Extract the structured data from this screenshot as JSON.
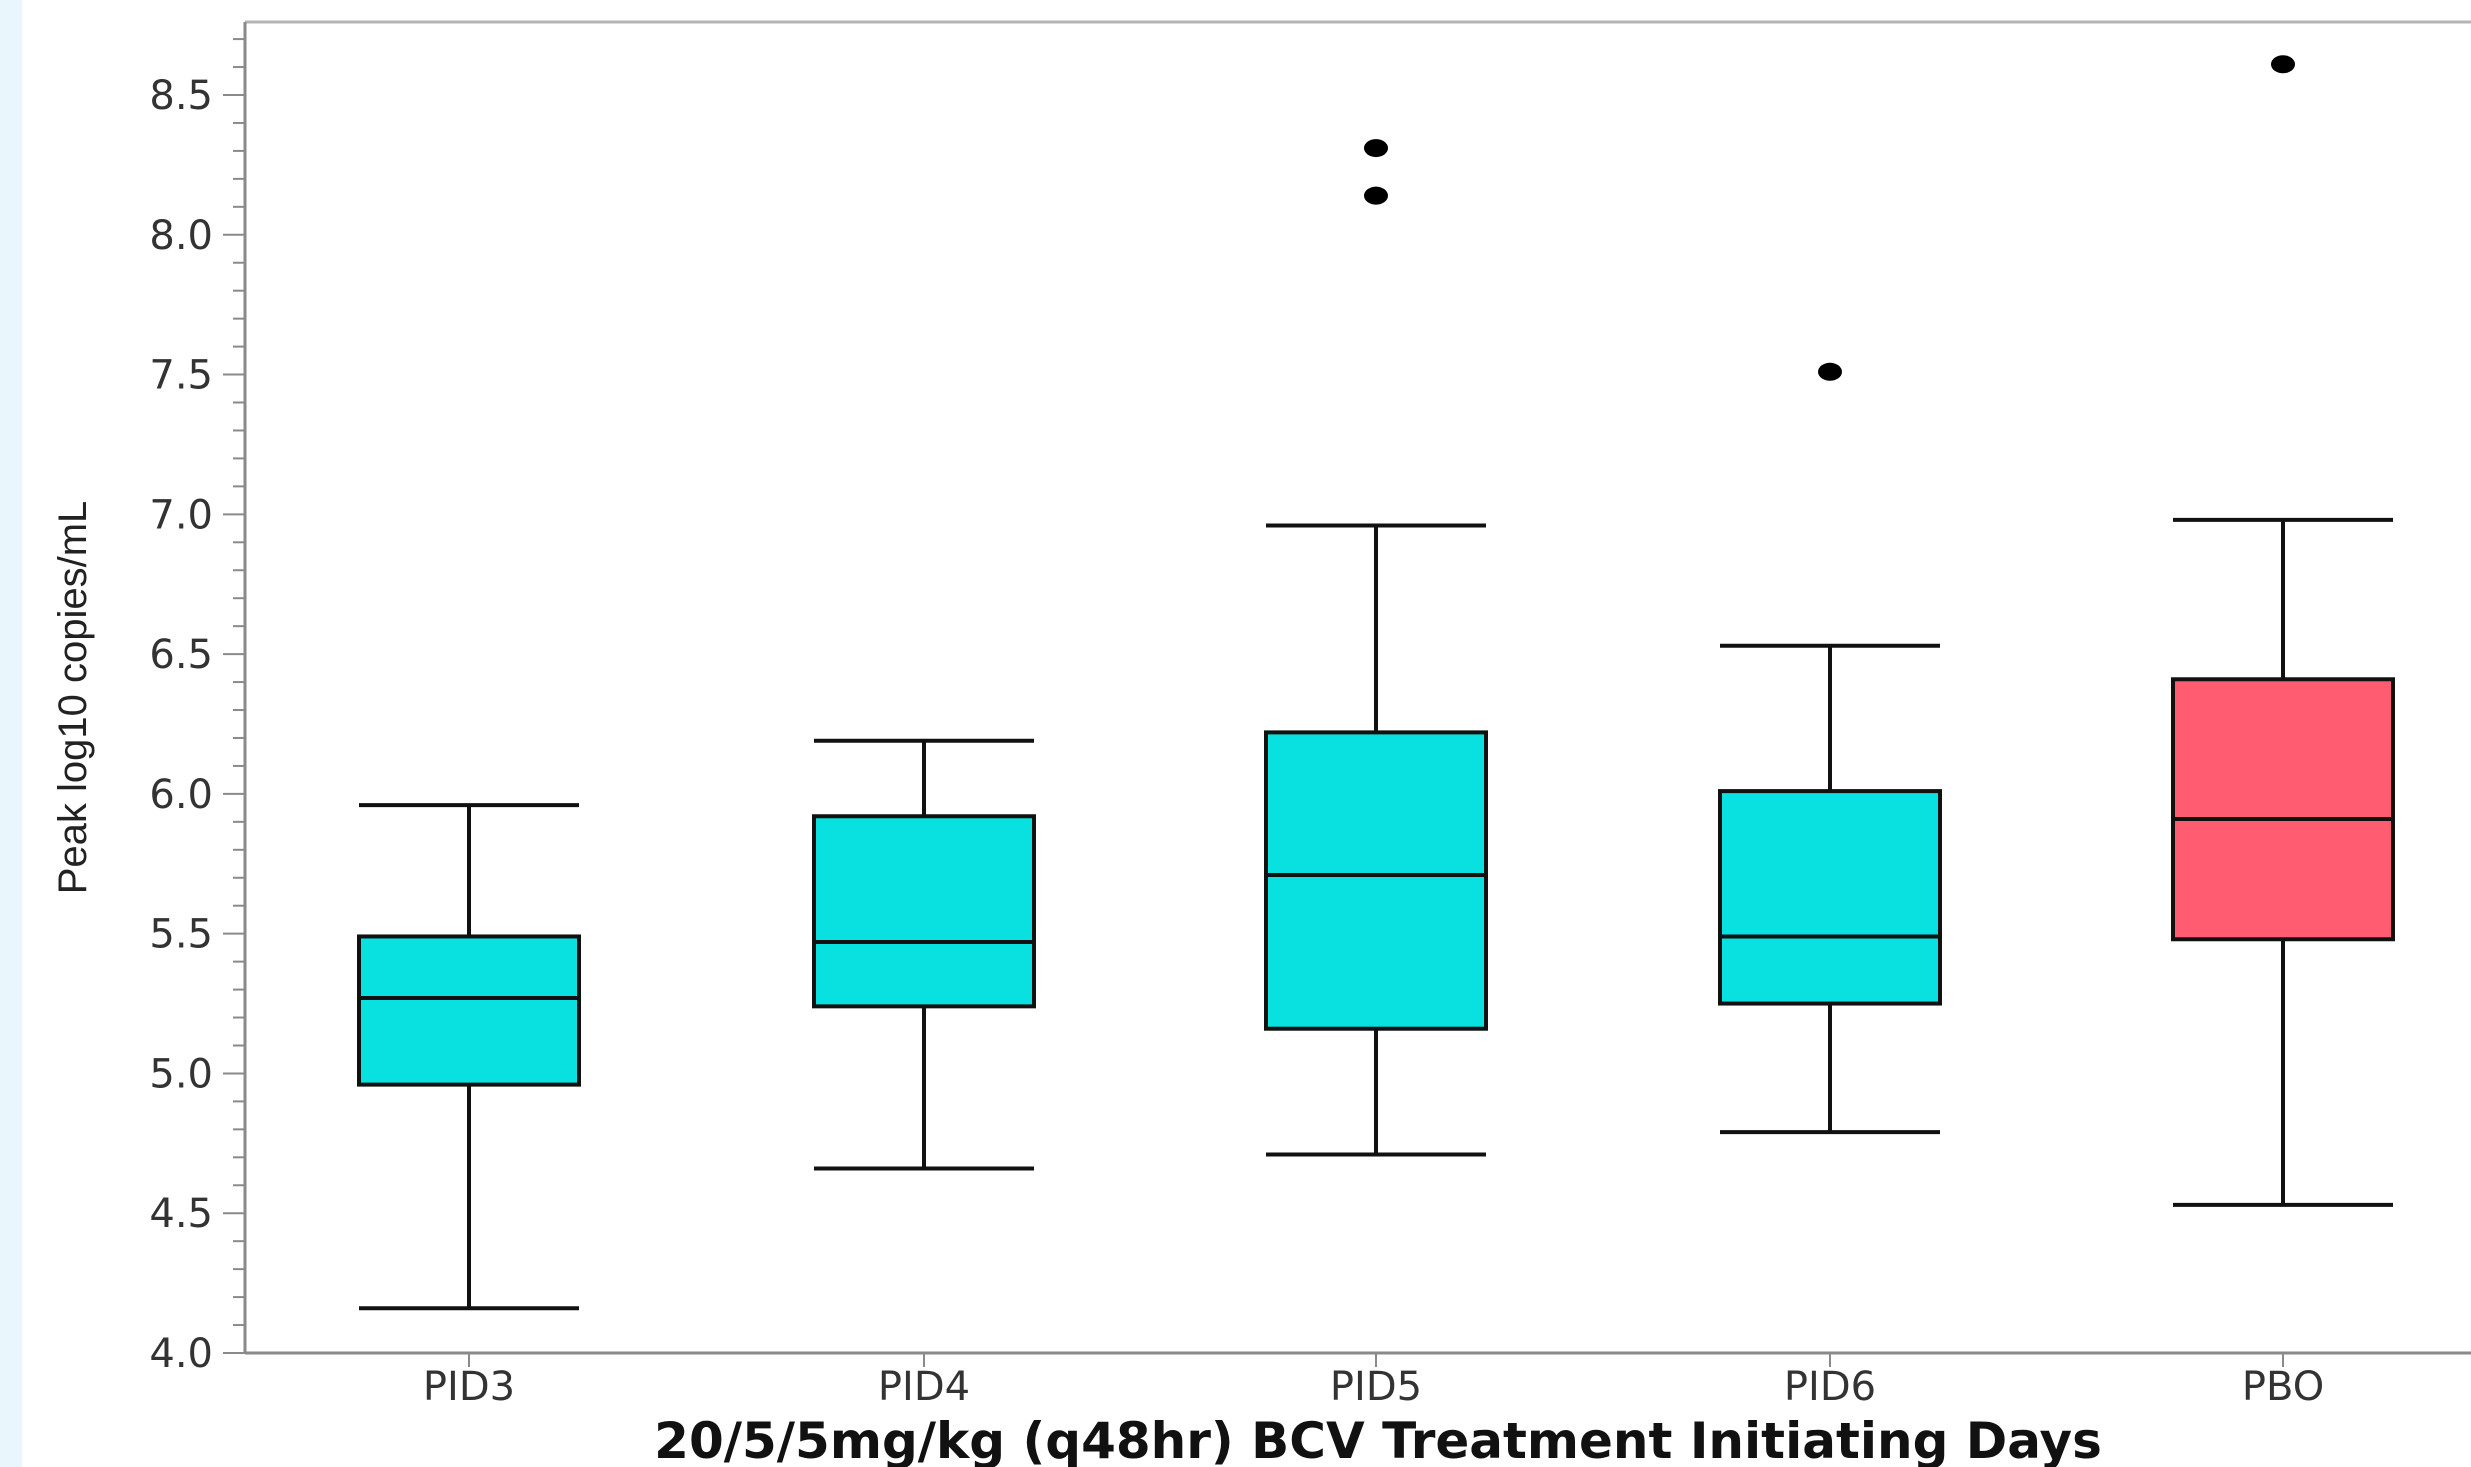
{
  "chart_data": {
    "type": "box",
    "title": "",
    "xlabel": "20/5/5mg/kg (q48hr) BCV Treatment Initiating Days",
    "ylabel": "Peak log10 copies/mL",
    "ylim": [
      4.0,
      8.75
    ],
    "yticks": [
      "4.0",
      "4.5",
      "5.0",
      "5.5",
      "6.0",
      "6.5",
      "7.0",
      "7.5",
      "8.0",
      "8.5"
    ],
    "grid": false,
    "legend": "none",
    "categories": [
      "PID3",
      "PID4",
      "PID5",
      "PID6",
      "PBO"
    ],
    "boxes": [
      {
        "min": 4.16,
        "q1": 4.96,
        "median": 5.27,
        "q3": 5.49,
        "max": 5.96,
        "outliers": [],
        "color": "#09e0e0"
      },
      {
        "min": 4.66,
        "q1": 5.24,
        "median": 5.47,
        "q3": 5.92,
        "max": 6.19,
        "outliers": [],
        "color": "#09e0e0"
      },
      {
        "min": 4.71,
        "q1": 5.16,
        "median": 5.71,
        "q3": 6.22,
        "max": 6.96,
        "outliers": [
          8.14,
          8.31
        ],
        "color": "#09e0e0"
      },
      {
        "min": 4.79,
        "q1": 5.25,
        "median": 5.49,
        "q3": 6.01,
        "max": 6.53,
        "outliers": [
          7.51
        ],
        "color": "#09e0e0"
      },
      {
        "min": 4.53,
        "q1": 5.48,
        "median": 5.91,
        "q3": 6.41,
        "max": 6.98,
        "outliers": [
          8.61
        ],
        "color": "#ff5c72"
      }
    ]
  }
}
